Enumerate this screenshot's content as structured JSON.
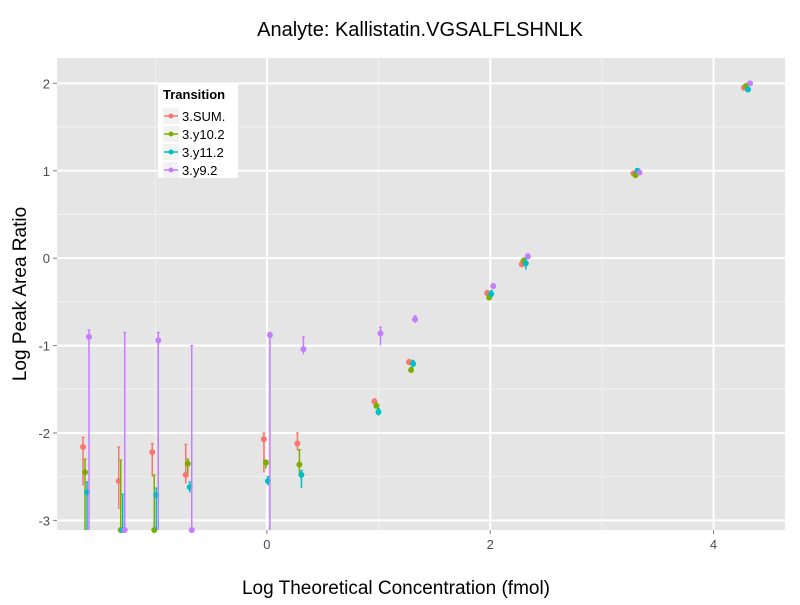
{
  "chart_data": {
    "type": "scatter",
    "title": "Analyte: Kallistatin.VGSALFLSHNLK",
    "xlabel": "Log Theoretical Concentration (fmol)",
    "ylabel": "Log Peak Area Ratio",
    "xlim": [
      -1.88,
      4.64
    ],
    "ylim": [
      -3.11,
      2.29
    ],
    "xticks": [
      0,
      2,
      4
    ],
    "yticks": [
      -3,
      -2,
      -1,
      0,
      1,
      2
    ],
    "grid": true,
    "legend": {
      "title": "Transition",
      "placement": "top-left"
    },
    "x": [
      -1.62,
      -1.3,
      -1.0,
      -0.7,
      0,
      0.3,
      0.99,
      1.3,
      2.0,
      2.31,
      3.31,
      4.3
    ],
    "series": [
      {
        "name": "3.SUM.",
        "color": "#F8766D",
        "values": [
          -2.16,
          -2.55,
          -2.22,
          -2.48,
          -2.07,
          -2.12,
          -1.64,
          -1.19,
          -0.4,
          -0.07,
          0.97,
          1.95
        ],
        "lo": [
          -2.6,
          -2.87,
          -2.5,
          -2.58,
          -2.45,
          -2.2,
          -1.67,
          -1.22,
          -0.43,
          -0.1,
          0.95,
          1.93
        ],
        "hi": [
          -2.05,
          -2.16,
          -2.12,
          -2.13,
          -2.0,
          -2.0,
          -1.61,
          -1.16,
          -0.37,
          -0.03,
          0.99,
          1.97
        ]
      },
      {
        "name": "3.y10.2",
        "color": "#7CAE00",
        "values": [
          -2.45,
          -3.2,
          -3.2,
          -2.35,
          -2.34,
          -2.36,
          -1.69,
          -1.28,
          -0.45,
          -0.03,
          0.95,
          1.97
        ],
        "lo": [
          -3.2,
          -3.2,
          -3.2,
          -2.46,
          -2.41,
          -2.5,
          -1.72,
          -1.3,
          -0.47,
          -0.06,
          0.93,
          1.95
        ],
        "hi": [
          -2.3,
          -2.31,
          -2.48,
          -2.3,
          -2.31,
          -2.19,
          -1.66,
          -1.25,
          -0.42,
          0.0,
          0.97,
          1.99
        ]
      },
      {
        "name": "3.y11.2",
        "color": "#00BFC4",
        "values": [
          -2.68,
          -3.2,
          -2.71,
          -2.62,
          -2.55,
          -2.48,
          -1.76,
          -1.21,
          -0.41,
          -0.06,
          1.0,
          1.93
        ],
        "lo": [
          -3.2,
          -3.2,
          -3.2,
          -2.68,
          -2.6,
          -2.63,
          -1.8,
          -1.25,
          -0.45,
          -0.13,
          0.98,
          1.91
        ],
        "hi": [
          -2.56,
          -2.7,
          -2.63,
          -2.56,
          -2.5,
          -2.43,
          -1.72,
          -1.17,
          -0.37,
          -0.01,
          1.02,
          1.95
        ]
      },
      {
        "name": "3.y9.2",
        "color": "#C77CFF",
        "values": [
          -0.9,
          -3.2,
          -0.94,
          -3.2,
          -0.88,
          -1.04,
          -0.86,
          -0.7,
          -0.32,
          0.02,
          0.98,
          2.0
        ],
        "lo": [
          -3.2,
          -3.2,
          -3.2,
          -3.2,
          -3.2,
          -1.1,
          -1.0,
          -0.74,
          -0.35,
          -0.01,
          0.96,
          1.98
        ],
        "hi": [
          -0.82,
          -0.85,
          -0.85,
          -1.0,
          -0.85,
          -0.9,
          -0.79,
          -0.66,
          -0.29,
          0.05,
          1.0,
          2.02
        ]
      }
    ]
  }
}
